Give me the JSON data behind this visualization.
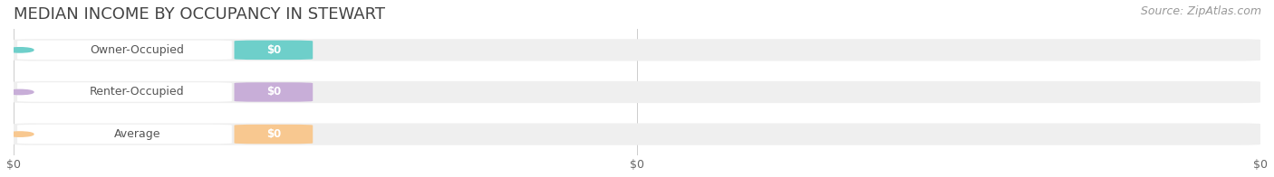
{
  "title": "MEDIAN INCOME BY OCCUPANCY IN STEWART",
  "source": "Source: ZipAtlas.com",
  "categories": [
    "Owner-Occupied",
    "Renter-Occupied",
    "Average"
  ],
  "values": [
    0,
    0,
    0
  ],
  "bar_colors": [
    "#6ecfca",
    "#c8aed8",
    "#f8c890"
  ],
  "bar_bg_colors": [
    "#efefef",
    "#efefef",
    "#efefef"
  ],
  "x_tick_labels": [
    "$0",
    "$0",
    "$0"
  ],
  "x_tick_positions": [
    0.0,
    0.5,
    1.0
  ],
  "title_color": "#444444",
  "source_color": "#999999",
  "label_text_color": "#ffffff",
  "category_text_color": "#555555",
  "background_color": "#ffffff",
  "bar_height": 0.52,
  "xlim": [
    0.0,
    1.0
  ],
  "title_fontsize": 13,
  "source_fontsize": 9,
  "cat_fontsize": 9,
  "badge_fontsize": 8.5,
  "tick_fontsize": 9
}
